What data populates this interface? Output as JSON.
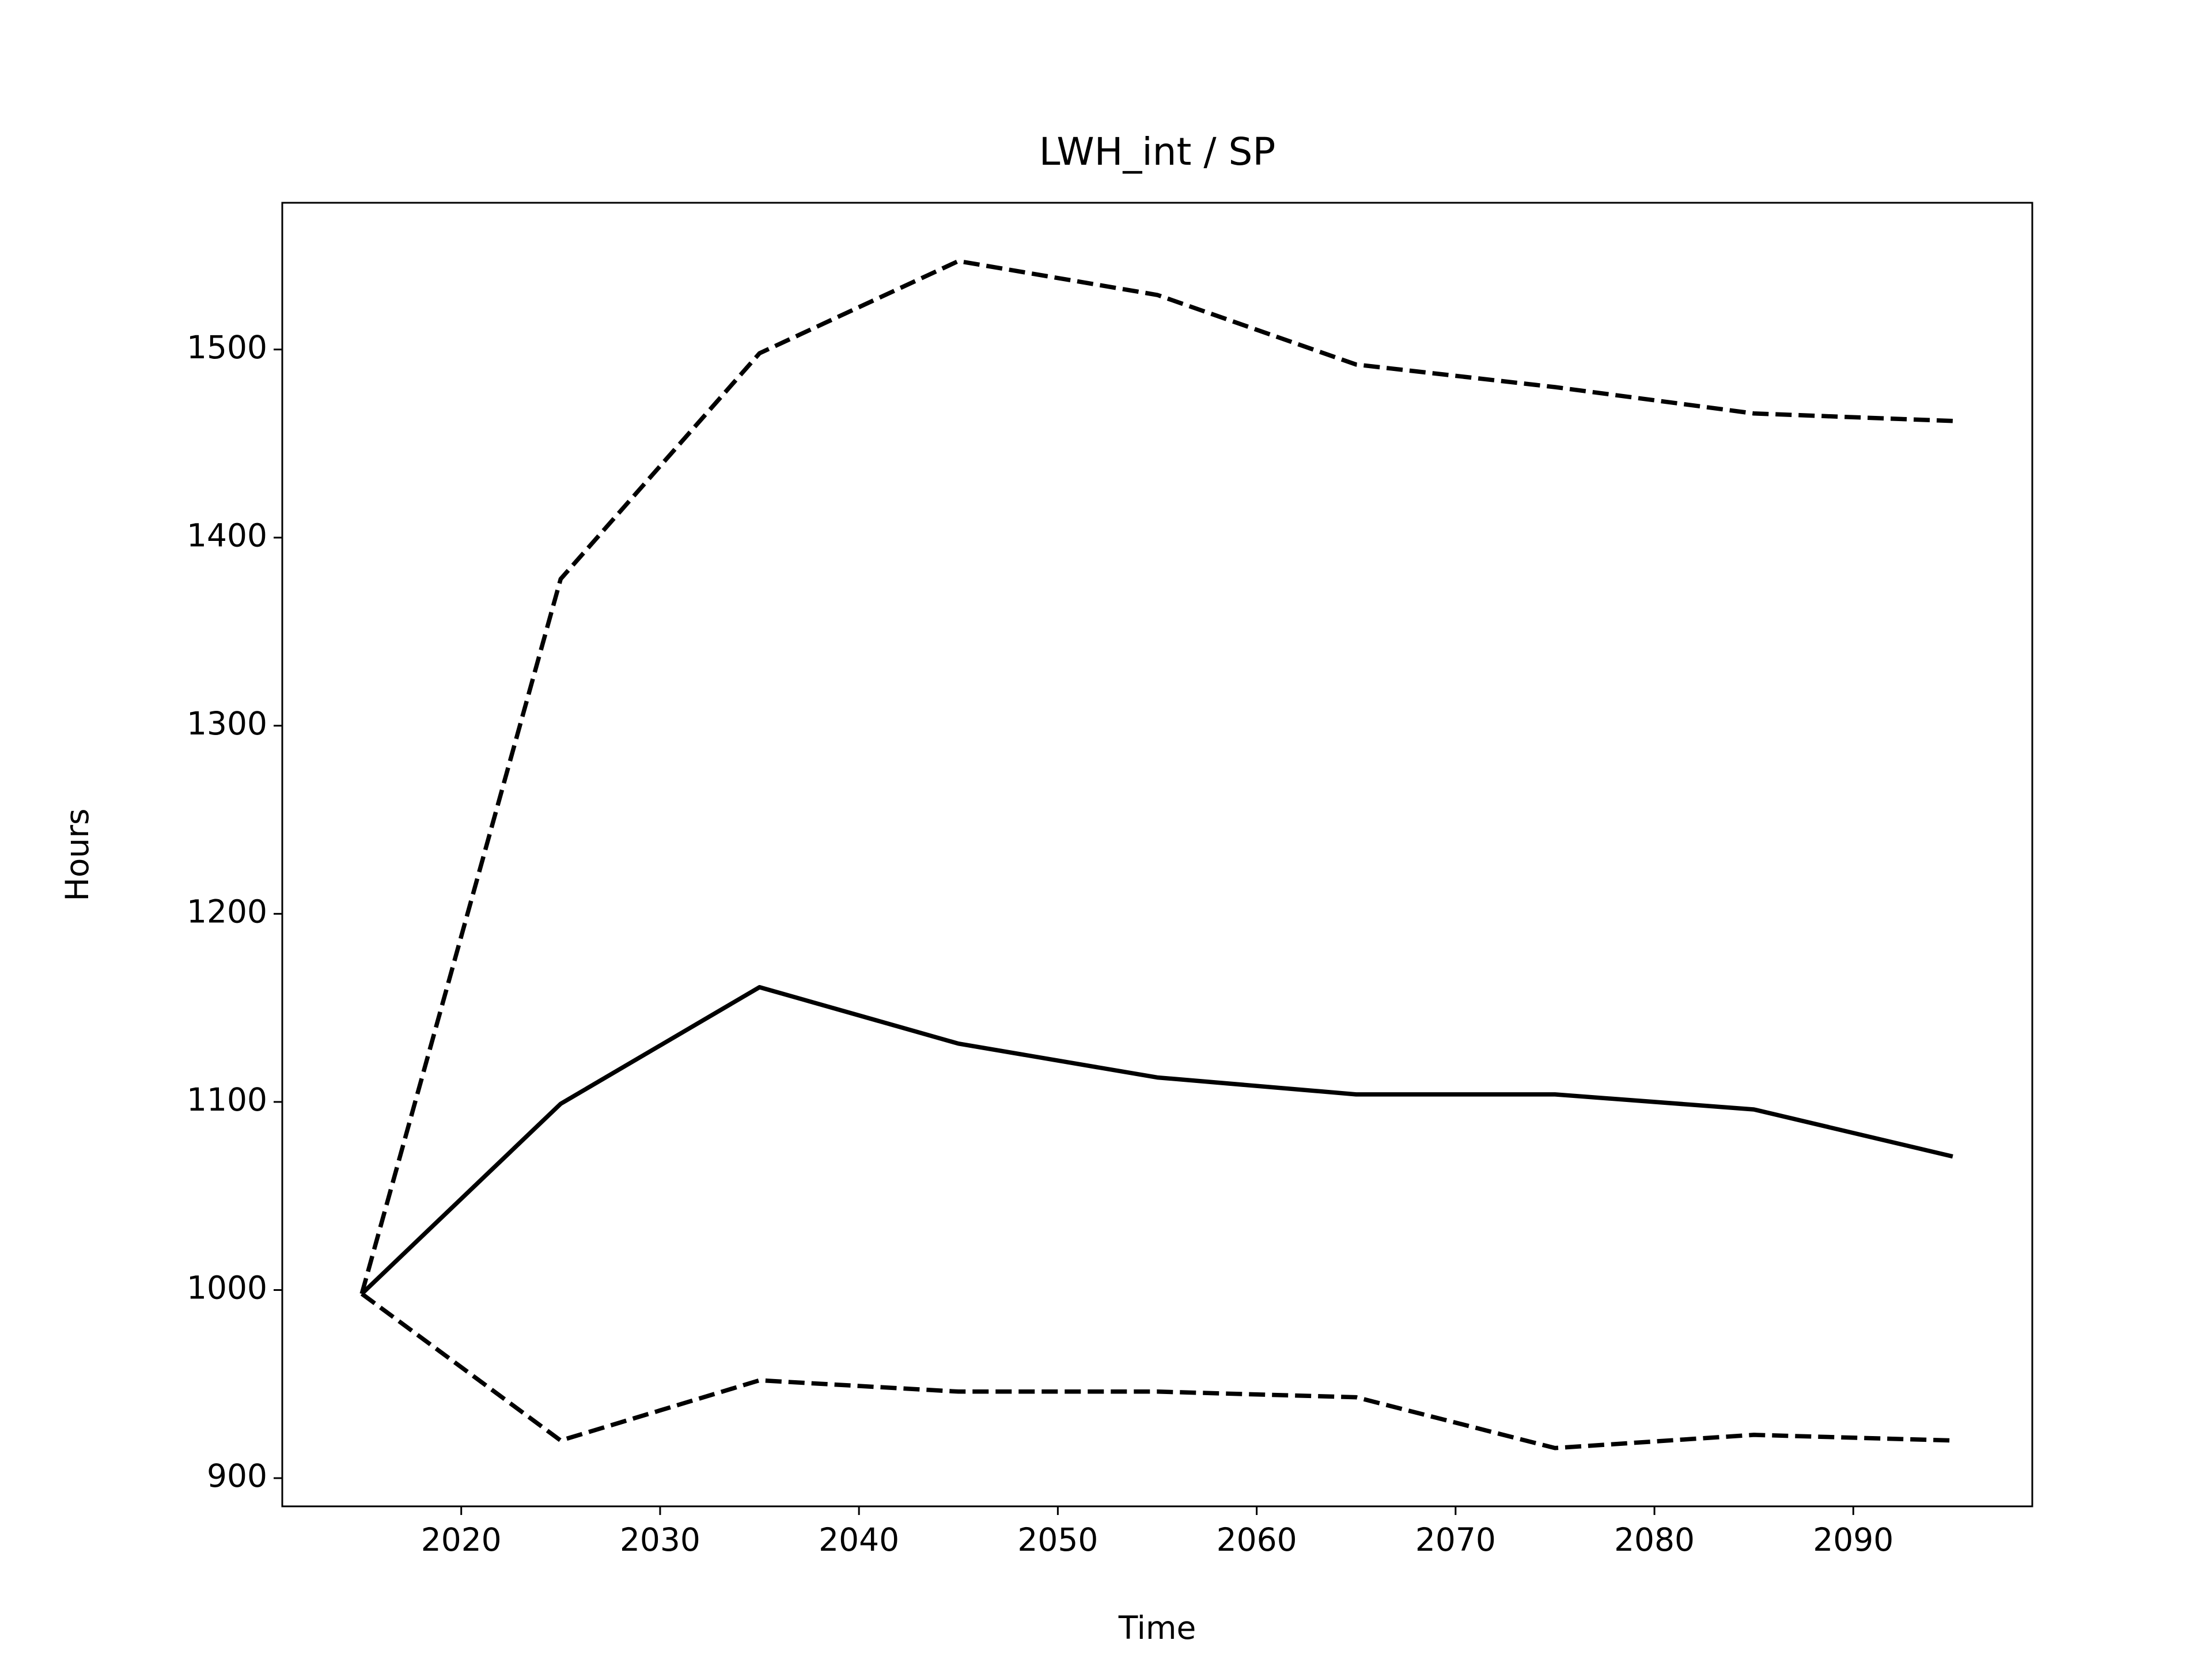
{
  "chart_data": {
    "type": "line",
    "title": "LWH_int / SP",
    "x_label": "Time",
    "y_label": "Hours",
    "x": [
      2015,
      2025,
      2035,
      2045,
      2055,
      2065,
      2075,
      2085,
      2095
    ],
    "series": [
      {
        "color": "#000000",
        "linestyle": "solid",
        "values": [
          998,
          1099,
          1161,
          1131,
          1113,
          1104,
          1104,
          1096,
          1071
        ]
      },
      {
        "color": "#000000",
        "linestyle": "dashed",
        "values": [
          998,
          1378,
          1498,
          1547,
          1529,
          1492,
          1480,
          1466,
          1462
        ]
      },
      {
        "color": "#000000",
        "linestyle": "dashed",
        "values": [
          998,
          920,
          952,
          946,
          946,
          943,
          916,
          923,
          920
        ]
      }
    ],
    "xlim": [
      2011,
      2099
    ],
    "xticks": [
      2020,
      2030,
      2040,
      2050,
      2060,
      2070,
      2080,
      2090
    ],
    "ylim": [
      885,
      1578
    ],
    "yticks": [
      900,
      1000,
      1100,
      1200,
      1300,
      1400,
      1500
    ],
    "grid": false
  }
}
